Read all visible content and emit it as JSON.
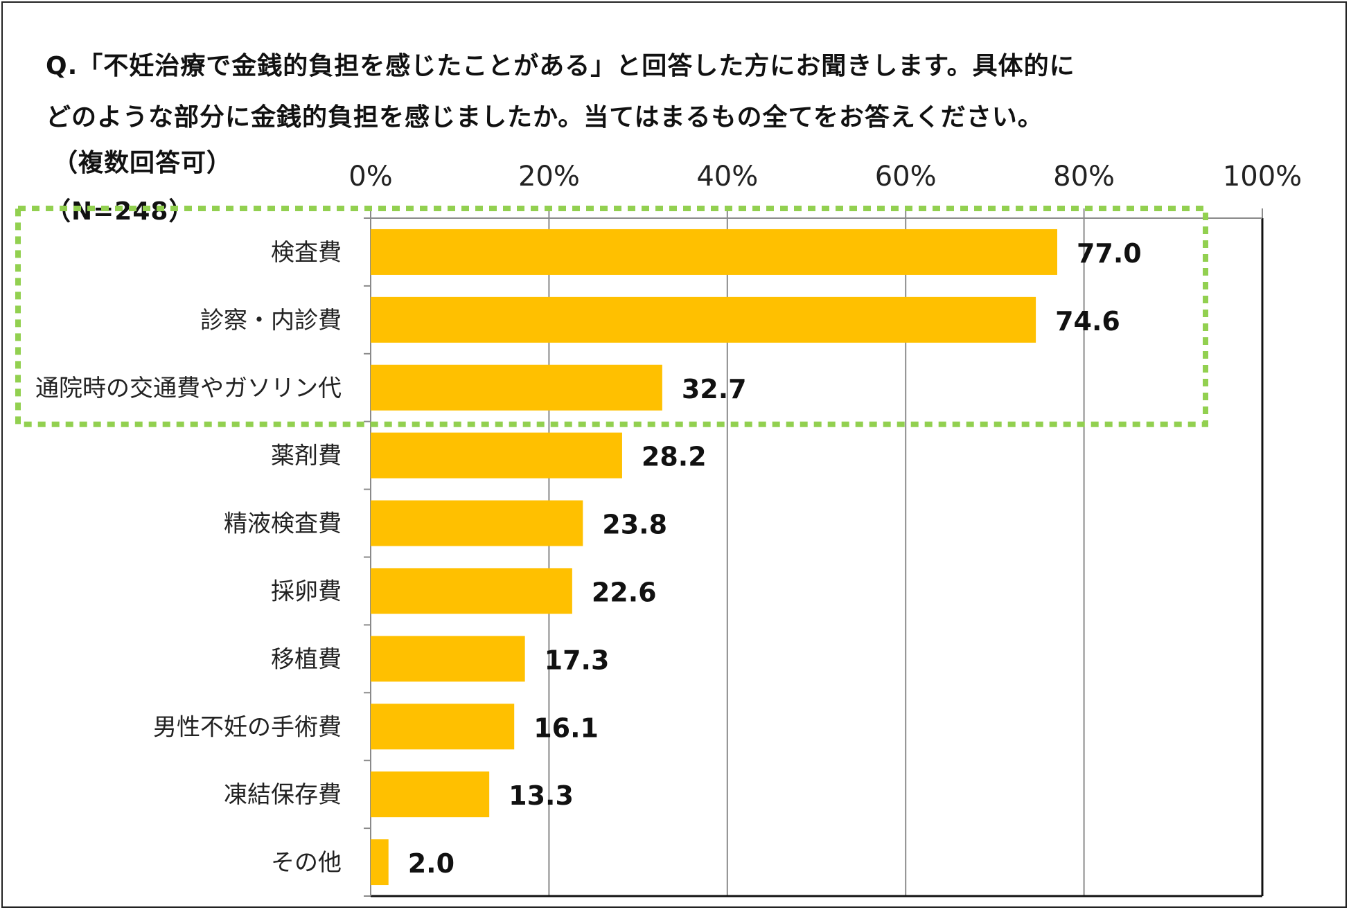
{
  "question": {
    "line1": "Q.「不妊治療で金銭的負担を感じたことがある」と回答した方にお聞きします。具体的に",
    "line2": "どのような部分に金銭的負担を感じましたか。当てはまるもの全てをお答えください。",
    "line3": "（複数回答可）",
    "sample": "（N=248）"
  },
  "chart_data": {
    "type": "bar",
    "orientation": "horizontal",
    "categories": [
      "検査費",
      "診察・内診費",
      "通院時の交通費やガソリン代",
      "薬剤費",
      "精液検査費",
      "採卵費",
      "移植費",
      "男性不妊の手術費",
      "凍結保存費",
      "その他"
    ],
    "values": [
      77.0,
      74.6,
      32.7,
      28.2,
      23.8,
      22.6,
      17.3,
      16.1,
      13.3,
      2.0
    ],
    "value_labels": [
      "77.0",
      "74.6",
      "32.7",
      "28.2",
      "23.8",
      "22.6",
      "17.3",
      "16.1",
      "13.3",
      "2.0"
    ],
    "xlim": [
      0,
      100
    ],
    "x_ticks": [
      0,
      20,
      40,
      60,
      80,
      100
    ],
    "x_tick_labels": [
      "0%",
      "20%",
      "40%",
      "60%",
      "80%",
      "100%"
    ],
    "grid": "vertical",
    "axis_position": "top",
    "bar_color": "#FFC000",
    "highlight": {
      "indices": [
        0,
        1,
        2
      ],
      "style": "dotted",
      "color": "#92D050"
    }
  }
}
